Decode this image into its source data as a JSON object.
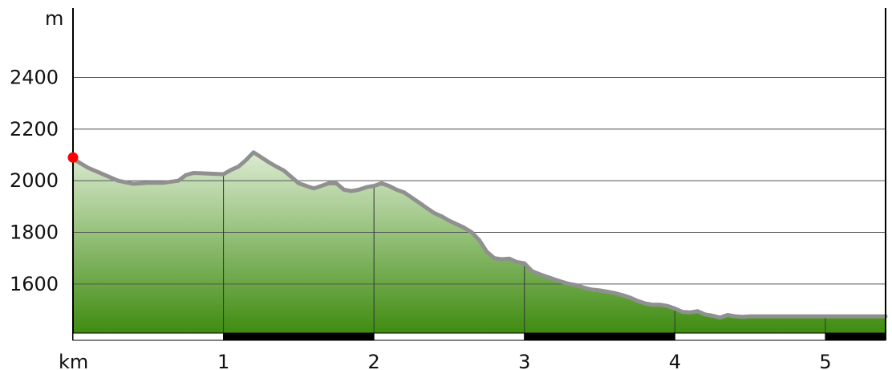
{
  "chart_data": {
    "type": "area",
    "title": "",
    "xlabel": "km",
    "ylabel": "m",
    "xlim": [
      0,
      5.4
    ],
    "ylim": [
      1410,
      2560
    ],
    "grid": true,
    "y_ticks": [
      1600,
      1800,
      2000,
      2200,
      2400
    ],
    "y_tick_labels": [
      "1600",
      "1800",
      "2000",
      "2200",
      "2400"
    ],
    "x_ticks": [
      1,
      2,
      3,
      4,
      5
    ],
    "x_tick_labels": [
      "1",
      "2",
      "3",
      "4",
      "5"
    ],
    "start_marker": {
      "x": 0,
      "y": 2090,
      "color": "#ff0000"
    },
    "line_color": "#909090",
    "fill_top_color": "#dcebd2",
    "fill_bottom_color": "#3f8c10",
    "scale_bar_colors": [
      "#ffffff",
      "#000000"
    ],
    "series": [
      {
        "x": [
          0,
          0.1,
          0.2,
          0.3,
          0.4,
          0.5,
          0.6,
          0.7,
          0.75,
          0.8,
          0.9,
          1.0,
          1.05,
          1.1,
          1.15,
          1.2,
          1.3,
          1.35,
          1.4,
          1.45,
          1.5,
          1.6,
          1.65,
          1.7,
          1.75,
          1.8,
          1.85,
          1.9,
          1.95,
          2.0,
          2.05,
          2.1,
          2.15,
          2.2,
          2.3,
          2.35,
          2.4,
          2.45,
          2.5,
          2.6,
          2.65,
          2.7,
          2.75,
          2.8,
          2.85,
          2.9,
          2.95,
          3.0,
          3.05,
          3.1,
          3.15,
          3.2,
          3.25,
          3.3,
          3.35,
          3.4,
          3.45,
          3.5,
          3.55,
          3.6,
          3.65,
          3.7,
          3.75,
          3.8,
          3.85,
          3.9,
          3.95,
          4.0,
          4.05,
          4.1,
          4.15,
          4.2,
          4.25,
          4.3,
          4.35,
          4.4,
          4.45,
          4.5,
          4.55,
          4.6,
          4.65,
          4.7,
          4.75,
          4.8,
          4.85,
          4.9,
          4.95,
          5.0,
          5.05,
          5.1,
          5.15,
          5.2,
          5.25,
          5.3,
          5.35,
          5.4
        ],
        "y": [
          2085,
          2050,
          2025,
          2000,
          1988,
          1992,
          1992,
          2000,
          2022,
          2030,
          2028,
          2025,
          2042,
          2055,
          2080,
          2110,
          2072,
          2055,
          2040,
          2015,
          1990,
          1970,
          1980,
          1990,
          1990,
          1965,
          1960,
          1965,
          1975,
          1980,
          1990,
          1980,
          1965,
          1955,
          1915,
          1895,
          1875,
          1862,
          1845,
          1818,
          1800,
          1770,
          1725,
          1700,
          1696,
          1698,
          1685,
          1680,
          1650,
          1638,
          1628,
          1618,
          1608,
          1600,
          1595,
          1585,
          1578,
          1575,
          1570,
          1565,
          1557,
          1548,
          1535,
          1525,
          1520,
          1520,
          1515,
          1505,
          1492,
          1490,
          1495,
          1482,
          1477,
          1470,
          1480,
          1475,
          1473,
          1475,
          1475,
          1475,
          1475,
          1475,
          1475,
          1475,
          1475,
          1475,
          1475,
          1475,
          1475,
          1475,
          1475,
          1475,
          1475,
          1475,
          1475,
          1475
        ]
      }
    ]
  }
}
